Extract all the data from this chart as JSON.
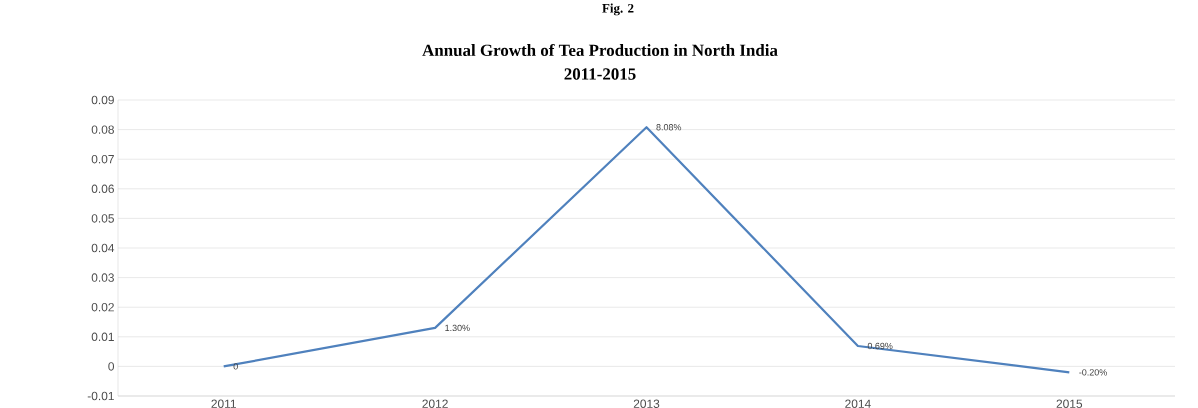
{
  "chart_data": {
    "type": "line",
    "title": "Annual Growth of Tea Production in North India",
    "subtitle": "2011-2015",
    "annotations": [
      "Fig. 2"
    ],
    "categories": [
      "2011",
      "2012",
      "2013",
      "2014",
      "2015"
    ],
    "series": [
      {
        "color": "#4f81bd",
        "values": [
          0,
          0.013,
          0.0808,
          0.0069,
          -0.002
        ],
        "value_labels": [
          "0",
          "1.30%",
          "8.08%",
          "0.69%",
          "-0.20%"
        ]
      }
    ],
    "ylim": [
      -0.01,
      0.09
    ],
    "yticks": [
      -0.01,
      0,
      0.01,
      0.02,
      0.03,
      0.04,
      0.05,
      0.06,
      0.07,
      0.08,
      0.09
    ],
    "grid": "y",
    "marker": "none",
    "line_style": "solid"
  }
}
